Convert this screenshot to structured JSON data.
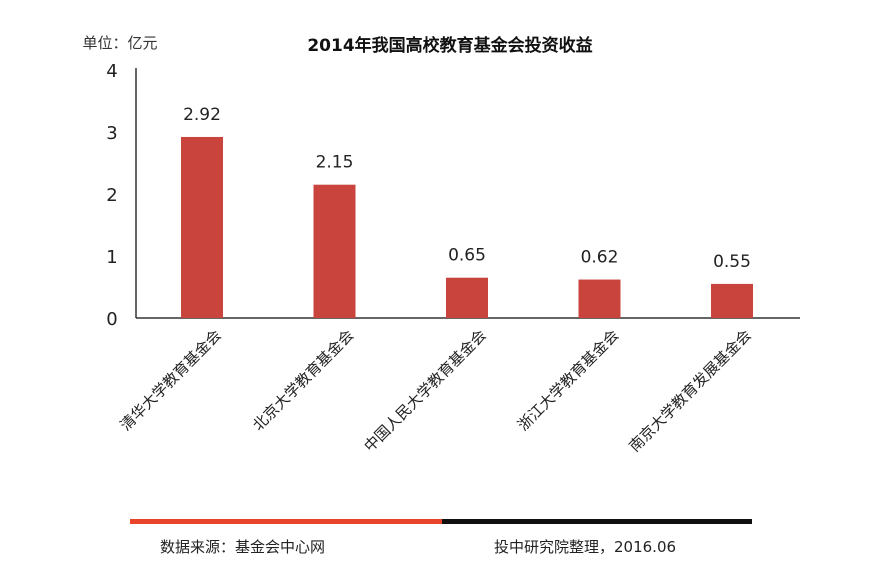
{
  "chart_data": {
    "type": "bar",
    "title": "2014年我国高校教育基金会投资收益",
    "unit_label": "单位：亿元",
    "categories": [
      "清华大学教育基金会",
      "北京大学教育基金会",
      "中国人民大学教育基金会",
      "浙江大学教育基金会",
      "南京大学教育发展基金会"
    ],
    "values": [
      2.92,
      2.15,
      0.65,
      0.62,
      0.55
    ],
    "value_labels": [
      "2.92",
      "2.15",
      "0.65",
      "0.62",
      "0.55"
    ],
    "yticks": [
      "0",
      "1",
      "2",
      "3",
      "4"
    ],
    "ylim": [
      0,
      4
    ],
    "bar_color": "#c9443c",
    "grid": false
  },
  "footer": {
    "source": "数据来源：基金会中心网",
    "credit": "投中研究院整理，2016.06",
    "accent_color": "#e8442c",
    "dark_color": "#111111"
  }
}
